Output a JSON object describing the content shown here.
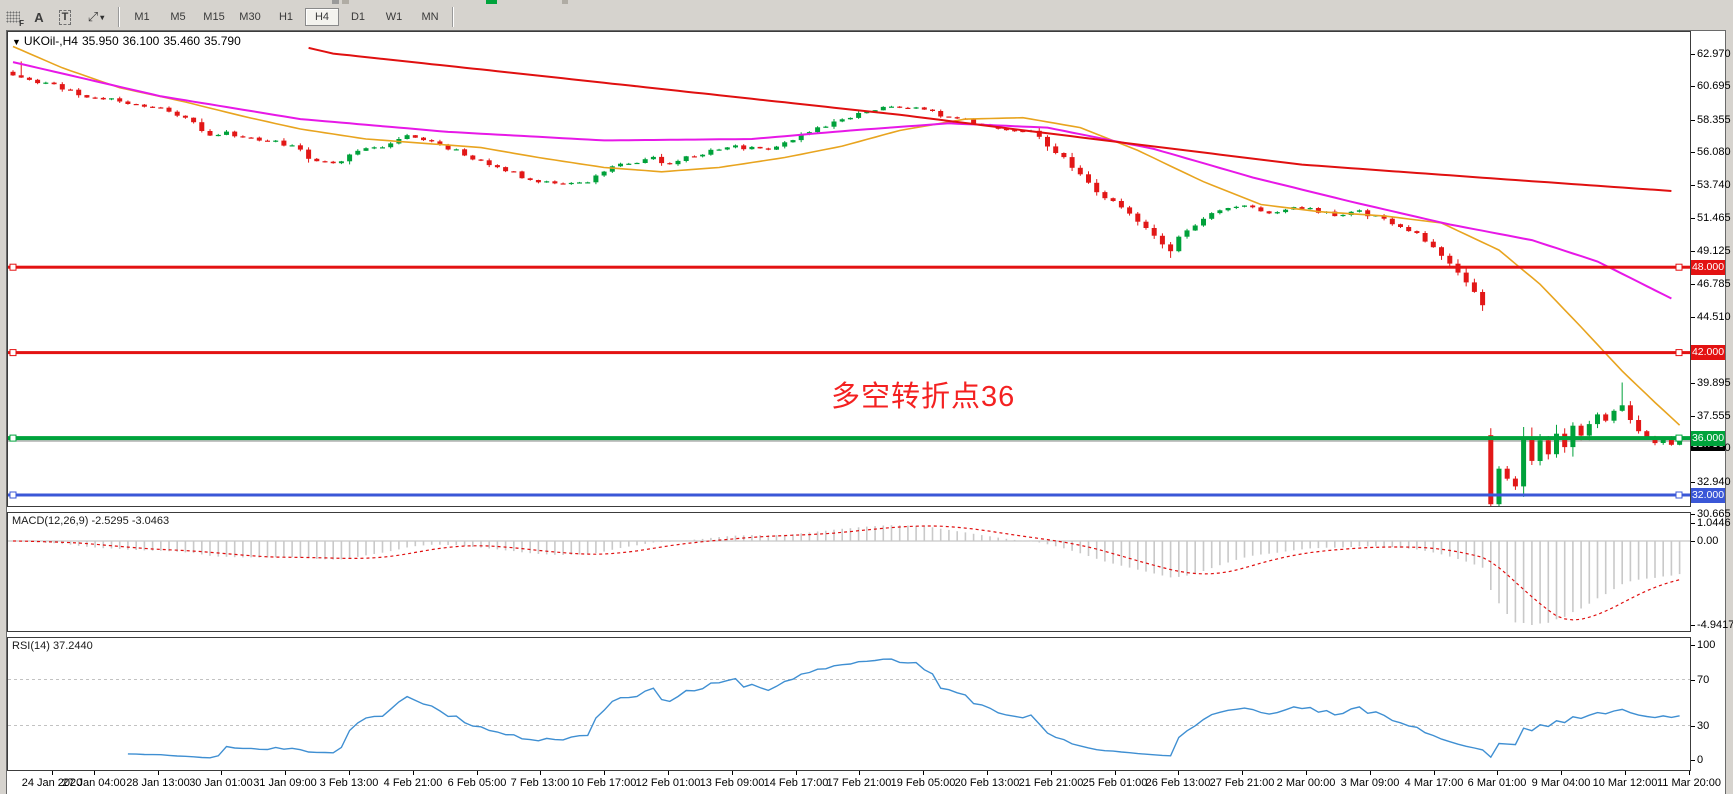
{
  "toolbar": {
    "icons": {
      "grid_f": "F",
      "text_a": "A",
      "text_t": "T",
      "arrows": "⤢",
      "caret": "▾"
    },
    "timeframes": [
      "M1",
      "M5",
      "M15",
      "M30",
      "H1",
      "H4",
      "D1",
      "W1",
      "MN"
    ],
    "active_timeframe": "H4"
  },
  "chart": {
    "header": {
      "dropdown_glyph": "▼",
      "symbol": "UKOil-,H4",
      "open": "35.950",
      "high": "36.100",
      "low": "35.460",
      "close": "35.790"
    },
    "annotation": {
      "text": "多空转折点36",
      "color": "#f42121"
    },
    "colors": {
      "candle_up": "#00a13a",
      "candle_down": "#e21717",
      "ma_fast": "#e8a41f",
      "ma_mid": "#e718e7",
      "ma_slow": "#e01010",
      "macd_hist": "#c9c9c9",
      "macd_signal": "#e01010",
      "rsi_line": "#3f8fd2",
      "bid_line": "#8a8a8a"
    },
    "hlines": [
      {
        "label": "48.000",
        "price": 48.0,
        "color": "#e31212",
        "width": 3
      },
      {
        "label": "42.000",
        "price": 42.0,
        "color": "#e31212",
        "width": 3
      },
      {
        "label": "36.000",
        "price": 36.0,
        "color": "#00a33c",
        "width": 4
      },
      {
        "label": "32.000",
        "price": 32.0,
        "color": "#3a57d7",
        "width": 3
      }
    ],
    "bid": {
      "label": "35.790",
      "price": 35.79,
      "color": "#000000"
    },
    "price_axis_ticks": [
      {
        "label": "62.970",
        "price": 62.97
      },
      {
        "label": "60.695",
        "price": 60.695
      },
      {
        "label": "58.355",
        "price": 58.355
      },
      {
        "label": "56.080",
        "price": 56.08
      },
      {
        "label": "53.740",
        "price": 53.74
      },
      {
        "label": "51.465",
        "price": 51.465
      },
      {
        "label": "49.125",
        "price": 49.125
      },
      {
        "label": "46.785",
        "price": 46.785
      },
      {
        "label": "44.510",
        "price": 44.51
      },
      {
        "label": "39.895",
        "price": 39.895
      },
      {
        "label": "37.555",
        "price": 37.555
      },
      {
        "label": "35.280",
        "price": 35.28
      },
      {
        "label": "32.940",
        "price": 32.94
      },
      {
        "label": "30.665",
        "price": 30.665
      }
    ],
    "macd": {
      "label": "MACD(12,26,9) -2.5295 -3.0463",
      "axis": [
        {
          "label": "1.0446",
          "value": 1.0446
        },
        {
          "label": "0.00",
          "value": 0
        },
        {
          "label": "-4.9417",
          "value": -4.9417
        }
      ]
    },
    "rsi": {
      "label": "RSI(14) 37.2440",
      "axis": [
        {
          "label": "100",
          "value": 100
        },
        {
          "label": "70",
          "value": 70
        },
        {
          "label": "30",
          "value": 30
        },
        {
          "label": "0",
          "value": 0
        }
      ],
      "levels": [
        70,
        30
      ]
    },
    "time_axis": [
      "24 Jan 2020",
      "27 Jan 04:00",
      "28 Jan 13:00",
      "30 Jan 01:00",
      "31 Jan 09:00",
      "3 Feb 13:00",
      "4 Feb 21:00",
      "6 Feb 05:00",
      "7 Feb 13:00",
      "10 Feb 17:00",
      "12 Feb 01:00",
      "13 Feb 09:00",
      "14 Feb 17:00",
      "17 Feb 21:00",
      "19 Feb 05:00",
      "20 Feb 13:00",
      "21 Feb 21:00",
      "25 Feb 01:00",
      "26 Feb 13:00",
      "27 Feb 21:00",
      "2 Mar 00:00",
      "3 Mar 09:00",
      "4 Mar 17:00",
      "6 Mar 01:00",
      "9 Mar 04:00",
      "10 Mar 12:00",
      "11 Mar 20:00"
    ]
  },
  "chart_data": {
    "type": "candlestick",
    "symbol": "UKOil- H4",
    "count": 204,
    "price_range_visible": [
      30.665,
      62.97
    ],
    "close_anchors": [
      [
        0,
        61.55
      ],
      [
        2,
        61.2
      ],
      [
        4,
        60.9
      ],
      [
        6,
        60.6
      ],
      [
        8,
        60.2
      ],
      [
        10,
        59.8
      ],
      [
        12,
        59.9
      ],
      [
        14,
        59.45
      ],
      [
        16,
        59.3
      ],
      [
        18,
        59.15
      ],
      [
        20,
        58.75
      ],
      [
        22,
        58.1
      ],
      [
        24,
        57.3
      ],
      [
        26,
        57.5
      ],
      [
        28,
        57.15
      ],
      [
        30,
        56.8
      ],
      [
        32,
        56.75
      ],
      [
        34,
        56.6
      ],
      [
        36,
        55.75
      ],
      [
        38,
        55.3
      ],
      [
        40,
        55.5
      ],
      [
        42,
        56.1
      ],
      [
        44,
        56.35
      ],
      [
        46,
        56.7
      ],
      [
        48,
        57.25
      ],
      [
        50,
        57.0
      ],
      [
        52,
        56.6
      ],
      [
        54,
        56.2
      ],
      [
        56,
        55.7
      ],
      [
        58,
        55.2
      ],
      [
        60,
        54.8
      ],
      [
        62,
        54.35
      ],
      [
        64,
        54.1
      ],
      [
        66,
        53.95
      ],
      [
        68,
        53.85
      ],
      [
        70,
        54.05
      ],
      [
        72,
        54.8
      ],
      [
        74,
        55.3
      ],
      [
        76,
        55.45
      ],
      [
        78,
        55.6
      ],
      [
        80,
        55.3
      ],
      [
        82,
        55.7
      ],
      [
        84,
        55.95
      ],
      [
        86,
        56.25
      ],
      [
        88,
        56.45
      ],
      [
        90,
        56.4
      ],
      [
        92,
        56.35
      ],
      [
        94,
        56.65
      ],
      [
        96,
        57.2
      ],
      [
        98,
        57.7
      ],
      [
        100,
        58.2
      ],
      [
        102,
        58.6
      ],
      [
        104,
        58.95
      ],
      [
        106,
        59.25
      ],
      [
        108,
        59.2
      ],
      [
        110,
        59.1
      ],
      [
        112,
        58.95
      ],
      [
        114,
        58.45
      ],
      [
        116,
        58.3
      ],
      [
        118,
        58.05
      ],
      [
        120,
        57.85
      ],
      [
        122,
        57.7
      ],
      [
        124,
        57.55
      ],
      [
        126,
        56.5
      ],
      [
        128,
        55.6
      ],
      [
        130,
        54.4
      ],
      [
        132,
        53.3
      ],
      [
        134,
        52.6
      ],
      [
        136,
        51.8
      ],
      [
        138,
        50.8
      ],
      [
        140,
        49.6
      ],
      [
        141,
        49.15
      ],
      [
        142,
        50.1
      ],
      [
        144,
        51.0
      ],
      [
        146,
        51.8
      ],
      [
        148,
        52.1
      ],
      [
        150,
        52.25
      ],
      [
        152,
        52.0
      ],
      [
        154,
        51.8
      ],
      [
        156,
        52.2
      ],
      [
        158,
        52.1
      ],
      [
        160,
        51.8
      ],
      [
        162,
        51.6
      ],
      [
        164,
        51.9
      ],
      [
        166,
        51.5
      ],
      [
        168,
        51.1
      ],
      [
        170,
        50.6
      ],
      [
        172,
        49.9
      ],
      [
        174,
        48.9
      ],
      [
        176,
        47.5
      ],
      [
        178,
        46.3
      ],
      [
        179,
        45.3
      ],
      [
        180,
        31.4
      ],
      [
        181,
        33.9
      ],
      [
        182,
        33.1
      ],
      [
        183,
        32.6
      ],
      [
        184,
        36.1
      ],
      [
        185,
        34.4
      ],
      [
        186,
        35.9
      ],
      [
        187,
        34.9
      ],
      [
        188,
        36.3
      ],
      [
        189,
        35.4
      ],
      [
        190,
        36.9
      ],
      [
        191,
        36.2
      ],
      [
        192,
        37.0
      ],
      [
        193,
        37.7
      ],
      [
        194,
        37.2
      ],
      [
        195,
        37.9
      ],
      [
        196,
        38.3
      ],
      [
        197,
        37.3
      ],
      [
        198,
        36.5
      ],
      [
        199,
        36.0
      ],
      [
        200,
        35.6
      ],
      [
        201,
        35.95
      ],
      [
        202,
        35.55
      ],
      [
        203,
        35.79
      ]
    ],
    "gap_opens": {
      "180": 36.2
    },
    "wick_overrides": {
      "1": {
        "high": 62.45
      },
      "141": {
        "low": 48.65
      },
      "180": {
        "low": 31.15
      },
      "196": {
        "high": 39.9
      }
    },
    "ma_slow_red_anchors": [
      [
        36,
        63.4
      ],
      [
        39,
        63.0
      ],
      [
        60,
        61.7
      ],
      [
        84,
        60.2
      ],
      [
        108,
        58.7
      ],
      [
        133,
        56.9
      ],
      [
        157,
        55.2
      ],
      [
        181,
        54.2
      ],
      [
        202,
        53.35
      ]
    ],
    "ma_mid_magenta_anchors": [
      [
        0,
        62.4
      ],
      [
        18,
        60.0
      ],
      [
        35,
        58.4
      ],
      [
        53,
        57.5
      ],
      [
        72,
        56.9
      ],
      [
        90,
        57.0
      ],
      [
        102,
        57.6
      ],
      [
        114,
        58.1
      ],
      [
        126,
        57.8
      ],
      [
        139,
        56.3
      ],
      [
        151,
        54.3
      ],
      [
        163,
        52.6
      ],
      [
        175,
        51.0
      ],
      [
        185,
        49.9
      ],
      [
        193,
        48.4
      ],
      [
        202,
        45.8
      ]
    ],
    "ma_fast_orange_anchors": [
      [
        0,
        63.5
      ],
      [
        6,
        62.0
      ],
      [
        13,
        60.6
      ],
      [
        21,
        59.6
      ],
      [
        28,
        58.6
      ],
      [
        35,
        57.7
      ],
      [
        43,
        57.0
      ],
      [
        50,
        56.7
      ],
      [
        57,
        56.4
      ],
      [
        64,
        55.7
      ],
      [
        72,
        55.0
      ],
      [
        79,
        54.7
      ],
      [
        86,
        55.0
      ],
      [
        94,
        55.7
      ],
      [
        101,
        56.5
      ],
      [
        108,
        57.6
      ],
      [
        116,
        58.4
      ],
      [
        123,
        58.5
      ],
      [
        130,
        57.8
      ],
      [
        137,
        56.2
      ],
      [
        145,
        54.0
      ],
      [
        152,
        52.4
      ],
      [
        159,
        51.9
      ],
      [
        167,
        51.6
      ],
      [
        174,
        51.1
      ],
      [
        181,
        49.2
      ],
      [
        186,
        46.8
      ],
      [
        191,
        43.8
      ],
      [
        196,
        40.7
      ],
      [
        200,
        38.5
      ],
      [
        203,
        36.9
      ]
    ],
    "macd_axis_range": [
      -4.9417,
      1.0446
    ],
    "rsi_axis_range": [
      0,
      100
    ]
  }
}
